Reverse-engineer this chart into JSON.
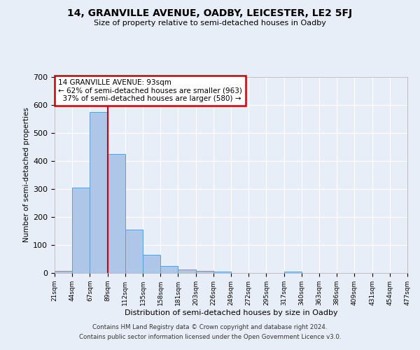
{
  "title": "14, GRANVILLE AVENUE, OADBY, LEICESTER, LE2 5FJ",
  "subtitle": "Size of property relative to semi-detached houses in Oadby",
  "xlabel": "Distribution of semi-detached houses by size in Oadby",
  "ylabel": "Number of semi-detached properties",
  "bar_values": [
    8,
    305,
    575,
    425,
    155,
    65,
    25,
    12,
    8,
    5,
    0,
    0,
    0,
    5,
    0,
    0,
    0,
    0,
    0,
    0
  ],
  "bin_labels": [
    "21sqm",
    "44sqm",
    "67sqm",
    "89sqm",
    "112sqm",
    "135sqm",
    "158sqm",
    "181sqm",
    "203sqm",
    "226sqm",
    "249sqm",
    "272sqm",
    "295sqm",
    "317sqm",
    "340sqm",
    "363sqm",
    "386sqm",
    "409sqm",
    "431sqm",
    "454sqm",
    "477sqm"
  ],
  "bar_color": "#aec6e8",
  "bar_edge_color": "#5a9fd4",
  "annotation_text": "14 GRANVILLE AVENUE: 93sqm\n← 62% of semi-detached houses are smaller (963)\n  37% of semi-detached houses are larger (580) →",
  "annotation_box_color": "#ffffff",
  "annotation_box_edge": "#cc0000",
  "red_line_color": "#cc0000",
  "ylim": [
    0,
    700
  ],
  "yticks": [
    0,
    100,
    200,
    300,
    400,
    500,
    600,
    700
  ],
  "footer1": "Contains HM Land Registry data © Crown copyright and database right 2024.",
  "footer2": "Contains public sector information licensed under the Open Government Licence v3.0.",
  "bg_color": "#e8eef7",
  "plot_bg_color": "#e8eef7",
  "grid_color": "#ffffff"
}
